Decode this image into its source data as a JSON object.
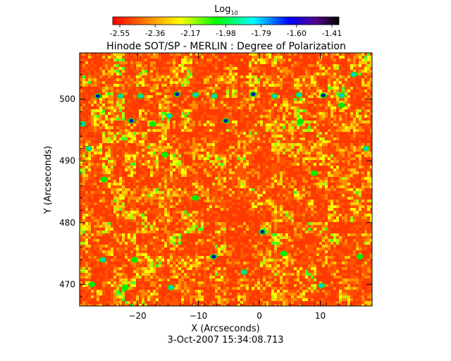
{
  "chart_data": {
    "type": "heatmap",
    "title": "Hinode SOT/SP - MERLIN : Degree of Polarization",
    "colorbar": {
      "label_base": "Log",
      "label_sub": "10",
      "tick_labels": [
        "-2.55",
        "-2.36",
        "-2.17",
        "-1.98",
        "-1.79",
        "-1.60",
        "-1.41"
      ],
      "range": [
        -2.55,
        -1.41
      ],
      "colormap": "rainbow-reversed (red low, black high)"
    },
    "xlabel": "X (Arcseconds)",
    "ylabel": "Y (Arcseconds)",
    "xlim": [
      -29.5,
      18.5
    ],
    "ylim": [
      466.5,
      507.5
    ],
    "xticks": [
      -20,
      -10,
      0,
      10
    ],
    "yticks": [
      470,
      480,
      490,
      500
    ],
    "timestamp": "3-Oct-2007 15:34:08.713",
    "grid": false,
    "colors": {
      "low": "#ff0000",
      "mid_low": "#ffa500",
      "mid": "#ffff00",
      "mid_high": "#00ff00",
      "high": "#00ffff",
      "higher": "#0000ff",
      "max": "#000000"
    }
  }
}
